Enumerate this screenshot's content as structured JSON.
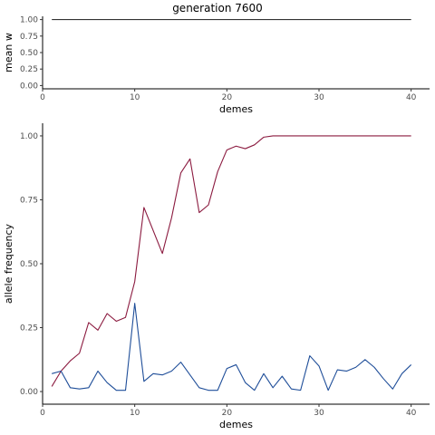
{
  "title": "generation 7600",
  "chart_data": [
    {
      "type": "line",
      "title": "generation 7600",
      "xlabel": "demes",
      "ylabel": "mean w",
      "xlim": [
        0,
        42
      ],
      "ylim": [
        0,
        1
      ],
      "x_ticks": [
        0,
        10,
        20,
        30,
        40
      ],
      "y_ticks": [
        0,
        0.25,
        0.5,
        0.75,
        1
      ],
      "y_tick_labels": [
        "0.00",
        "0.25",
        "0.50",
        "0.75",
        "1.00"
      ],
      "grid": false,
      "x": [
        1,
        40
      ],
      "series": [
        {
          "values": [
            1,
            1
          ],
          "color": "#333333"
        }
      ]
    },
    {
      "type": "line",
      "xlabel": "demes",
      "ylabel": "allele frequency",
      "xlim": [
        0,
        42
      ],
      "ylim": [
        0,
        1
      ],
      "x_ticks": [
        0,
        10,
        20,
        30,
        40
      ],
      "y_ticks": [
        0,
        0.25,
        0.5,
        0.75,
        1
      ],
      "y_tick_labels": [
        "0.00",
        "0.25",
        "0.50",
        "0.75",
        "1.00"
      ],
      "grid": false,
      "x": [
        1,
        2,
        3,
        4,
        5,
        6,
        7,
        8,
        9,
        10,
        11,
        12,
        13,
        14,
        15,
        16,
        17,
        18,
        19,
        20,
        21,
        22,
        23,
        24,
        25,
        26,
        27,
        28,
        29,
        30,
        31,
        32,
        33,
        34,
        35,
        36,
        37,
        38,
        39,
        40
      ],
      "series": [
        {
          "color": "#8b1a3f",
          "values": [
            0.02,
            0.08,
            0.12,
            0.15,
            0.27,
            0.24,
            0.305,
            0.275,
            0.29,
            0.43,
            0.72,
            0.63,
            0.54,
            0.68,
            0.855,
            0.91,
            0.7,
            0.73,
            0.86,
            0.945,
            0.96,
            0.95,
            0.965,
            0.995,
            1.0,
            1.0,
            1.0,
            1.0,
            1.0,
            1.0,
            1.0,
            1.0,
            1.0,
            1.0,
            1.0,
            1.0,
            1.0,
            1.0,
            1.0,
            1.0
          ]
        },
        {
          "color": "#1f4e99",
          "values": [
            0.07,
            0.08,
            0.015,
            0.01,
            0.015,
            0.08,
            0.035,
            0.005,
            0.005,
            0.345,
            0.04,
            0.07,
            0.065,
            0.08,
            0.115,
            0.065,
            0.015,
            0.005,
            0.005,
            0.09,
            0.105,
            0.035,
            0.005,
            0.07,
            0.015,
            0.06,
            0.01,
            0.005,
            0.14,
            0.1,
            0.005,
            0.085,
            0.08,
            0.095,
            0.125,
            0.095,
            0.05,
            0.01,
            0.07,
            0.105
          ]
        }
      ]
    }
  ]
}
